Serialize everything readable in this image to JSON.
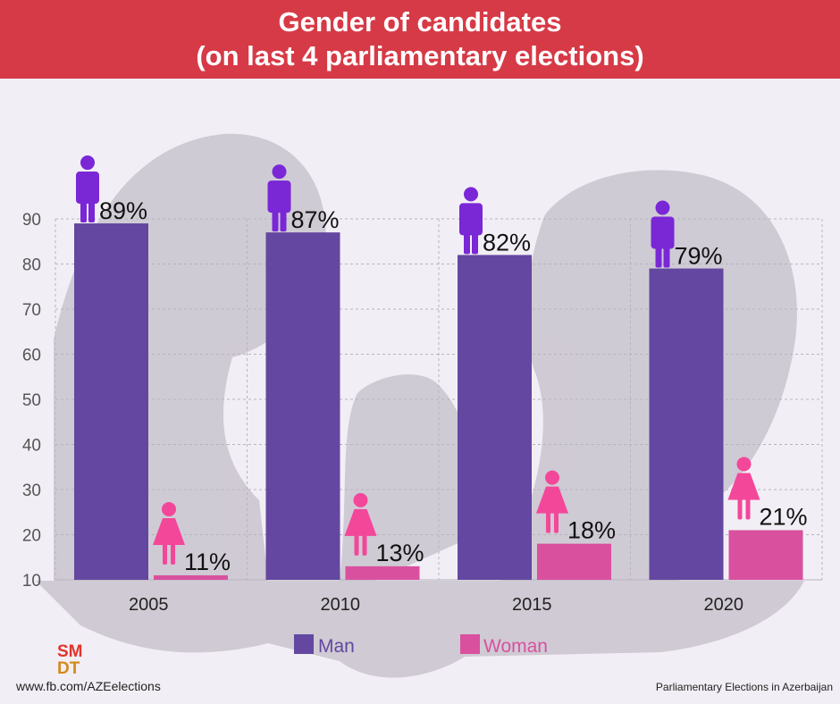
{
  "header": {
    "title_line1": "Gender of candidates",
    "title_line2": "(on last 4 parliamentary elections)"
  },
  "colors": {
    "banner": "#d63a46",
    "man": "#6347a0",
    "woman": "#d9509e",
    "man_icon": "#7a27d6",
    "woman_icon": "#f3479a"
  },
  "chart_data": {
    "type": "bar",
    "title": "Gender of candidates (on last 4 parliamentary elections)",
    "categories": [
      "2005",
      "2010",
      "2015",
      "2020"
    ],
    "series": [
      {
        "name": "Man",
        "values": [
          89,
          87,
          82,
          79
        ],
        "labels": [
          "89%",
          "87%",
          "82%",
          "79%"
        ]
      },
      {
        "name": "Woman",
        "values": [
          11,
          13,
          18,
          21
        ],
        "labels": [
          "11%",
          "13%",
          "18%",
          "21%"
        ]
      }
    ],
    "ylim": [
      10,
      90
    ],
    "yticks": [
      "10",
      "20",
      "30",
      "40",
      "50",
      "60",
      "70",
      "80",
      "90"
    ],
    "grid": true,
    "legend": "bottom-center",
    "xlabel": "",
    "ylabel": ""
  },
  "legend": {
    "man": "Man",
    "woman": "Woman"
  },
  "logo": {
    "line1": "SM",
    "line2": "DT"
  },
  "footer": {
    "left": "www.fb.com/AZEelections",
    "right": "Parliamentary Elections in Azerbaijan"
  }
}
